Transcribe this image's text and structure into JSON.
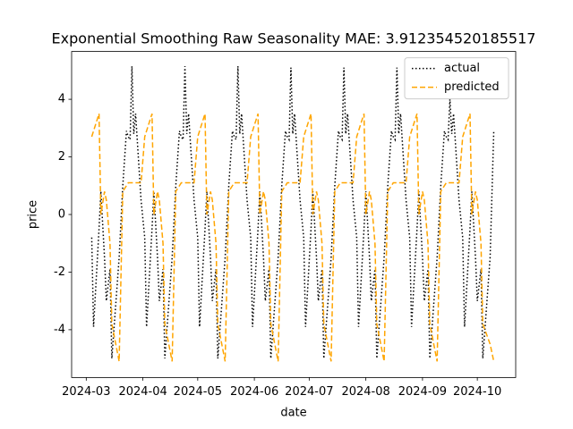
{
  "chart_data": {
    "type": "line",
    "title": "Exponential Smoothing Raw Seasonality MAE: 3.912354520185517",
    "xlabel": "date",
    "ylabel": "price",
    "x": [
      "2024-03-04",
      "2024-03-05",
      "2024-03-08",
      "2024-03-09",
      "2024-03-11",
      "2024-03-12",
      "2024-03-14",
      "2024-03-15",
      "2024-03-19",
      "2024-03-21",
      "2024-03-23",
      "2024-03-24",
      "2024-03-25",
      "2024-03-26",
      "2024-03-27",
      "2024-03-28",
      "2024-03-31",
      "2024-04-02",
      "2024-04-03",
      "2024-04-06",
      "2024-04-07",
      "2024-04-09",
      "2024-04-10",
      "2024-04-12",
      "2024-04-13",
      "2024-04-17",
      "2024-04-19",
      "2024-04-21",
      "2024-04-22",
      "2024-04-23",
      "2024-04-24",
      "2024-04-25",
      "2024-04-26",
      "2024-04-29",
      "2024-05-01",
      "2024-05-02",
      "2024-05-05",
      "2024-05-06",
      "2024-05-08",
      "2024-05-09",
      "2024-05-11",
      "2024-05-12",
      "2024-05-16",
      "2024-05-18",
      "2024-05-20",
      "2024-05-21",
      "2024-05-22",
      "2024-05-23",
      "2024-05-24",
      "2024-05-25",
      "2024-05-28",
      "2024-05-30",
      "2024-05-31",
      "2024-06-03",
      "2024-06-04",
      "2024-06-06",
      "2024-06-07",
      "2024-06-09",
      "2024-06-10",
      "2024-06-14",
      "2024-06-16",
      "2024-06-18",
      "2024-06-19",
      "2024-06-20",
      "2024-06-21",
      "2024-06-22",
      "2024-06-23",
      "2024-06-26",
      "2024-06-28",
      "2024-06-29",
      "2024-07-02",
      "2024-07-03",
      "2024-07-05",
      "2024-07-06",
      "2024-07-08",
      "2024-07-09",
      "2024-07-13",
      "2024-07-15",
      "2024-07-17",
      "2024-07-18",
      "2024-07-19",
      "2024-07-20",
      "2024-07-21",
      "2024-07-22",
      "2024-07-25",
      "2024-07-27",
      "2024-07-28",
      "2024-07-31",
      "2024-08-01",
      "2024-08-03",
      "2024-08-04",
      "2024-08-06",
      "2024-08-07",
      "2024-08-11",
      "2024-08-13",
      "2024-08-15",
      "2024-08-16",
      "2024-08-17",
      "2024-08-18",
      "2024-08-19",
      "2024-08-20",
      "2024-08-23",
      "2024-08-25",
      "2024-08-26",
      "2024-08-29",
      "2024-08-30",
      "2024-09-01",
      "2024-09-02",
      "2024-09-04",
      "2024-09-05",
      "2024-09-09",
      "2024-09-11",
      "2024-09-13",
      "2024-09-14",
      "2024-09-15",
      "2024-09-16",
      "2024-09-17",
      "2024-09-18",
      "2024-09-21",
      "2024-09-23",
      "2024-09-24",
      "2024-09-27",
      "2024-09-28",
      "2024-09-30",
      "2024-10-01",
      "2024-10-03",
      "2024-10-04",
      "2024-10-08",
      "2024-10-10"
    ],
    "series": [
      {
        "name": "actual",
        "color": "#000000",
        "dash": "dotted",
        "values": [
          -0.8,
          -3.9,
          -0.5,
          0.8,
          -1.5,
          -3.0,
          -1.9,
          -5.0,
          -1.5,
          1.0,
          2.9,
          2.7,
          2.6,
          5.15,
          2.8,
          3.5,
          0.5,
          -0.8,
          -3.9,
          -0.5,
          0.8,
          -1.5,
          -3.0,
          -1.9,
          -5.0,
          -1.5,
          1.0,
          2.9,
          2.7,
          2.6,
          5.15,
          2.8,
          3.5,
          0.5,
          -0.8,
          -3.9,
          -0.5,
          0.8,
          -1.5,
          -3.0,
          -1.9,
          -5.0,
          -1.5,
          1.0,
          2.9,
          2.7,
          2.6,
          5.15,
          2.8,
          3.5,
          0.5,
          -0.8,
          -3.9,
          -0.5,
          0.8,
          -1.5,
          -3.0,
          -1.9,
          -5.0,
          -1.5,
          1.0,
          2.9,
          2.7,
          2.6,
          5.1,
          2.8,
          3.5,
          0.5,
          -0.8,
          -3.9,
          -0.5,
          0.8,
          -1.5,
          -3.0,
          -1.9,
          -5.0,
          -1.5,
          1.0,
          2.9,
          2.7,
          2.6,
          5.1,
          2.8,
          3.5,
          0.5,
          -0.8,
          -3.9,
          -0.5,
          0.8,
          -1.5,
          -3.0,
          -1.9,
          -5.0,
          -1.5,
          1.0,
          2.9,
          2.7,
          2.6,
          5.1,
          2.8,
          3.5,
          0.5,
          -0.8,
          -3.9,
          -0.5,
          0.8,
          -1.5,
          -3.0,
          -1.9,
          -5.0,
          -1.5,
          1.0,
          2.9,
          2.7,
          2.6,
          4.0,
          2.8,
          3.5,
          0.5,
          -0.8,
          -3.9,
          -0.5,
          0.8,
          -1.5,
          -3.0,
          -1.9,
          -5.0,
          -1.5,
          2.9
        ]
      },
      {
        "name": "predicted",
        "color": "#ffa500",
        "dash": "dashed",
        "values": [
          2.7,
          2.9,
          3.5,
          0.0,
          0.8,
          0.5,
          -1.0,
          -3.8,
          -5.1,
          0.8,
          1.0,
          1.1,
          1.1,
          1.1,
          1.1,
          1.1,
          1.1,
          2.7,
          2.9,
          3.5,
          0.0,
          0.8,
          0.5,
          -1.0,
          -3.8,
          -5.1,
          0.8,
          1.0,
          1.1,
          1.1,
          1.1,
          1.1,
          1.1,
          1.1,
          2.7,
          2.9,
          3.5,
          0.0,
          0.8,
          0.5,
          -1.0,
          -3.8,
          -5.1,
          0.8,
          1.0,
          1.1,
          1.1,
          1.1,
          1.1,
          1.1,
          1.1,
          2.7,
          2.9,
          3.5,
          0.0,
          0.8,
          0.5,
          -1.0,
          -3.8,
          -5.1,
          0.8,
          1.0,
          1.1,
          1.1,
          1.1,
          1.1,
          1.1,
          1.1,
          2.7,
          2.9,
          3.5,
          0.0,
          0.8,
          0.5,
          -1.0,
          -3.8,
          -5.1,
          0.8,
          1.0,
          1.1,
          1.1,
          1.1,
          1.1,
          1.1,
          1.1,
          2.7,
          2.9,
          3.5,
          0.0,
          0.8,
          0.5,
          -1.0,
          -3.8,
          -5.1,
          0.8,
          1.0,
          1.1,
          1.1,
          1.1,
          1.1,
          1.1,
          1.1,
          2.7,
          2.9,
          3.5,
          0.0,
          0.8,
          0.5,
          -1.0,
          -3.8,
          -5.1,
          0.8,
          1.0,
          1.1,
          1.1,
          1.1,
          1.1,
          1.1,
          1.1,
          2.7,
          2.9,
          3.5,
          0.0,
          0.8,
          0.5,
          -1.0,
          -3.8,
          -4.5,
          -5.1
        ]
      }
    ],
    "xlim": [
      "2024-02-22",
      "2024-10-22"
    ],
    "xticks": [
      {
        "value": "2024-03-01",
        "label": "2024-03"
      },
      {
        "value": "2024-04-01",
        "label": "2024-04"
      },
      {
        "value": "2024-05-01",
        "label": "2024-05"
      },
      {
        "value": "2024-06-01",
        "label": "2024-06"
      },
      {
        "value": "2024-07-01",
        "label": "2024-07"
      },
      {
        "value": "2024-08-01",
        "label": "2024-08"
      },
      {
        "value": "2024-09-01",
        "label": "2024-09"
      },
      {
        "value": "2024-10-01",
        "label": "2024-10"
      }
    ],
    "ylim": [
      -5.66,
      5.66
    ],
    "yticks": [
      -4,
      -2,
      0,
      2,
      4
    ],
    "legend": "upper right",
    "grid": false
  }
}
